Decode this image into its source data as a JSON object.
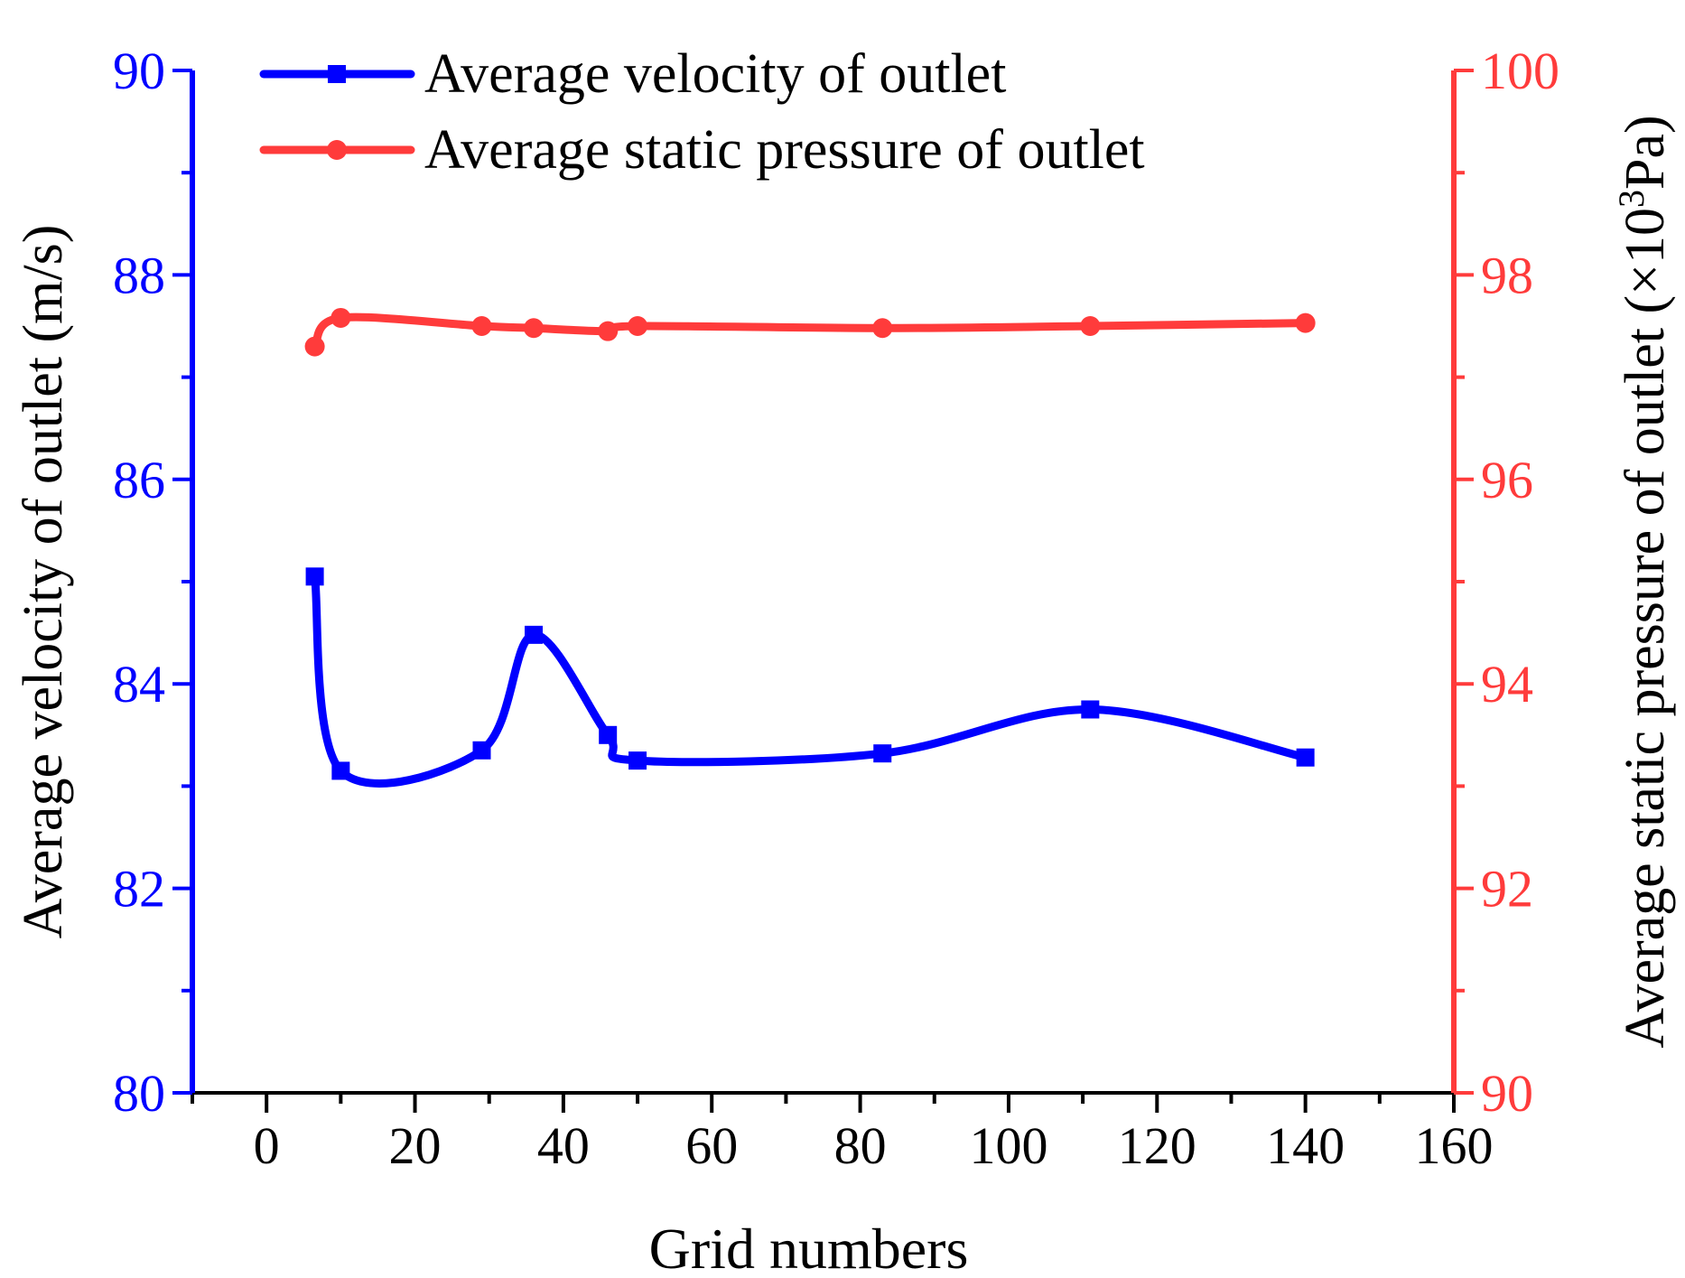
{
  "chart_data": {
    "type": "line",
    "title": "",
    "xlabel": "Grid numbers",
    "xlim": [
      -10,
      160
    ],
    "xticks": [
      0,
      20,
      40,
      60,
      80,
      100,
      120,
      140,
      160
    ],
    "x_minor_step": 10,
    "left_axis": {
      "label": "Average velocity of outlet (m/s)",
      "ylim": [
        80,
        90
      ],
      "ticks": [
        80,
        82,
        84,
        86,
        88,
        90
      ],
      "color": "#0000ff"
    },
    "right_axis": {
      "label_main": "Average static pressure of outlet (×10",
      "label_sup": "3",
      "label_end": "Pa)",
      "ylim": [
        90,
        100
      ],
      "ticks": [
        90,
        92,
        94,
        96,
        98,
        100
      ],
      "color": "#ff3b3b"
    },
    "legend_position": "top",
    "series": [
      {
        "name": "Average velocity of outlet",
        "axis": "left",
        "marker": "square",
        "color": "#0000ff",
        "x": [
          6.5,
          10,
          29,
          36,
          46,
          50,
          83,
          111,
          140
        ],
        "values": [
          85.05,
          83.15,
          83.35,
          84.48,
          83.5,
          83.25,
          83.32,
          83.75,
          83.28
        ]
      },
      {
        "name": "Average static pressure of outlet",
        "axis": "right",
        "marker": "circle",
        "color": "#ff3b3b",
        "x": [
          6.5,
          10,
          29,
          36,
          46,
          50,
          83,
          111,
          140
        ],
        "values": [
          97.3,
          97.58,
          97.5,
          97.48,
          97.45,
          97.5,
          97.48,
          97.5,
          97.53
        ]
      }
    ]
  }
}
